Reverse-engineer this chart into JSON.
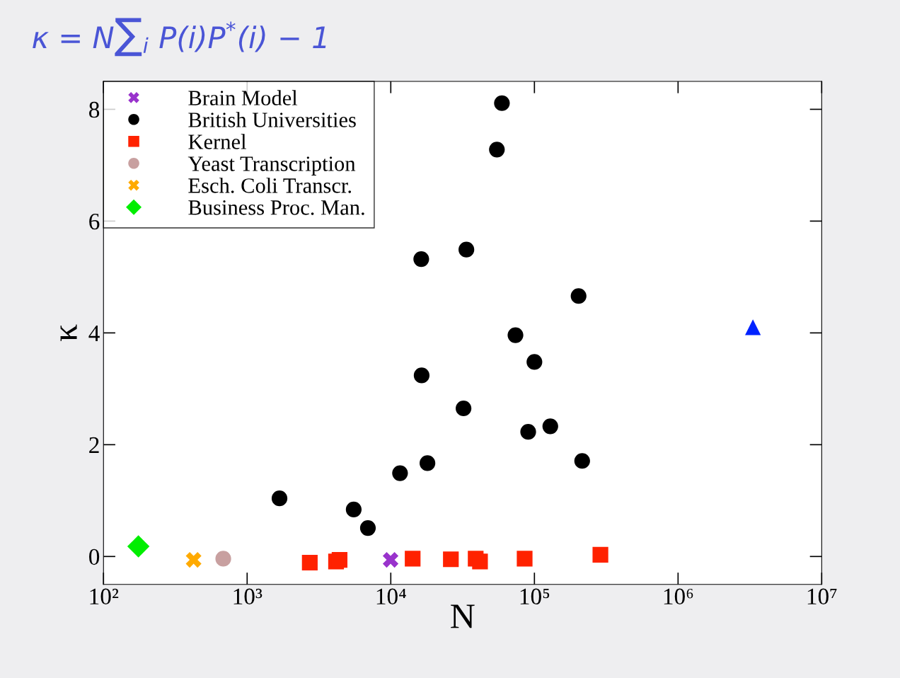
{
  "chart_data": {
    "type": "scatter",
    "title": "κ = N∑$_{i}$ P(i)P$^{*}$(i) − 1",
    "xlabel": "N",
    "ylabel": "κ",
    "log": "x",
    "xlim": [
      100,
      10000000
    ],
    "xticks": [
      {
        "value": 100,
        "label": "10²"
      },
      {
        "value": 1000,
        "label": "10³"
      },
      {
        "value": 10000,
        "label": "10⁴"
      },
      {
        "value": 100000,
        "label": "10⁵"
      },
      {
        "value": 1000000,
        "label": "10⁶"
      },
      {
        "value": 10000000,
        "label": "10⁷"
      }
    ],
    "ylim": [
      -0.5,
      8.5
    ],
    "yticks": [
      0,
      2,
      4,
      6,
      8
    ],
    "grid": false,
    "legend": "top left",
    "series": [
      {
        "color": "#0022ff",
        "marker": "triangle",
        "x": [
          3320000
        ],
        "values": [
          4.1
        ]
      },
      {
        "name": "Brain Model",
        "color": "#9933cc",
        "marker": "cross",
        "x": [
          9970
        ],
        "values": [
          -0.06
        ]
      },
      {
        "name": "British Universities",
        "color": "#000000",
        "marker": "circle",
        "x": [
          1680,
          5520,
          6930,
          11600,
          16400,
          16300,
          18000,
          32100,
          33600,
          54800,
          59400,
          73800,
          90500,
          100000,
          129000,
          203000,
          215000
        ],
        "values": [
          1.04,
          0.84,
          0.51,
          1.49,
          3.24,
          5.32,
          1.67,
          2.65,
          5.49,
          7.28,
          8.11,
          3.96,
          2.23,
          3.48,
          2.33,
          4.66,
          1.71
        ]
      },
      {
        "name": "Kernel",
        "color": "#ff2200",
        "marker": "square",
        "x": [
          2730,
          4160,
          4400,
          14200,
          26200,
          39000,
          41800,
          85500,
          288000
        ],
        "values": [
          -0.11,
          -0.09,
          -0.06,
          -0.04,
          -0.05,
          -0.04,
          -0.09,
          -0.04,
          0.03
        ]
      },
      {
        "name": "Yeast Transcription",
        "color": "#c8a0a0",
        "marker": "circle",
        "x": [
          682
        ],
        "values": [
          -0.04
        ]
      },
      {
        "name": "Esch. Coli Transcr.",
        "color": "#ffaa00",
        "marker": "cross",
        "x": [
          424
        ],
        "values": [
          -0.06
        ]
      },
      {
        "name": "Business Proc. Man.",
        "color": "#00ee00",
        "marker": "diamond",
        "x": [
          175
        ],
        "values": [
          0.18
        ]
      }
    ]
  }
}
